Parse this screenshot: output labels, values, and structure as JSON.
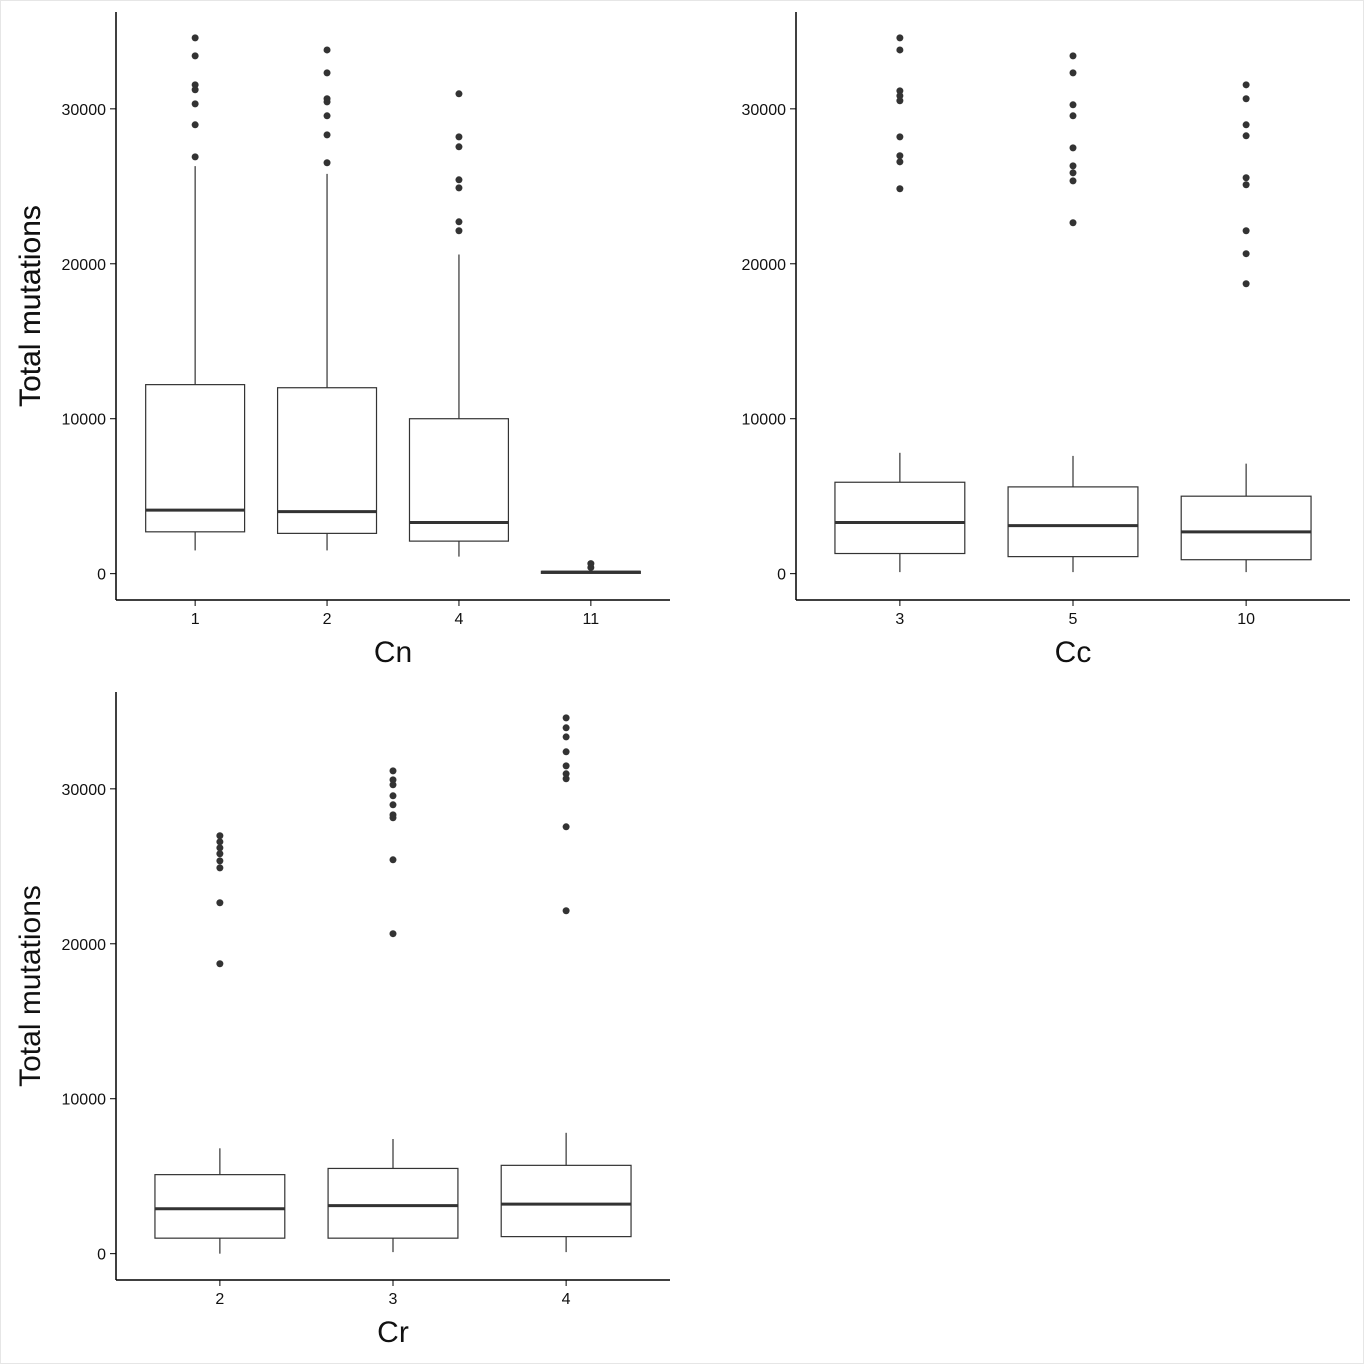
{
  "chart_data": [
    {
      "type": "box",
      "x_label": "Cn",
      "y_label": "Total mutations",
      "categories": [
        "1",
        "2",
        "4",
        "11"
      ],
      "boxes": [
        {
          "whislo": 1500,
          "q1": 2700,
          "med": 4100,
          "q3": 12200,
          "whishi": 26300,
          "outliers": [
            34580,
            33420,
            31550,
            31230,
            30320,
            28970,
            26900
          ]
        },
        {
          "whislo": 1500,
          "q1": 2600,
          "med": 4000,
          "q3": 12000,
          "whishi": 25800,
          "outliers": [
            33800,
            32320,
            30650,
            30450,
            29550,
            28320,
            26520
          ]
        },
        {
          "whislo": 1100,
          "q1": 2100,
          "med": 3300,
          "q3": 10000,
          "whishi": 20600,
          "outliers": [
            30970,
            28190,
            27550,
            25420,
            24900,
            22710,
            22130
          ]
        },
        {
          "whislo": 0,
          "q1": 20,
          "med": 100,
          "q3": 150,
          "whishi": 300,
          "outliers": [
            400,
            650
          ]
        }
      ],
      "ylim": [
        -1700,
        36250
      ],
      "yticks": [
        0,
        10000,
        20000,
        30000
      ]
    },
    {
      "type": "box",
      "x_label": "Cc",
      "y_label": "Total mutations",
      "categories": [
        "3",
        "5",
        "10"
      ],
      "boxes": [
        {
          "whislo": 100,
          "q1": 1300,
          "med": 3300,
          "q3": 5900,
          "whishi": 7800,
          "outliers": [
            34580,
            33800,
            31160,
            30840,
            30520,
            28190,
            26970,
            26580,
            24840
          ]
        },
        {
          "whislo": 100,
          "q1": 1100,
          "med": 3100,
          "q3": 5600,
          "whishi": 7600,
          "outliers": [
            33420,
            32320,
            30260,
            29550,
            27480,
            26320,
            25870,
            25350,
            22650
          ]
        },
        {
          "whislo": 100,
          "q1": 900,
          "med": 2700,
          "q3": 5000,
          "whishi": 7100,
          "outliers": [
            31550,
            30650,
            28970,
            28260,
            25550,
            25100,
            22130,
            20650,
            18710
          ]
        }
      ],
      "ylim": [
        -1700,
        36250
      ],
      "yticks": [
        0,
        10000,
        20000,
        30000
      ]
    },
    {
      "type": "box",
      "x_label": "Cr",
      "y_label": "Total mutations",
      "categories": [
        "2",
        "3",
        "4"
      ],
      "boxes": [
        {
          "whislo": 0,
          "q1": 1000,
          "med": 2900,
          "q3": 5100,
          "whishi": 6800,
          "outliers": [
            26970,
            26580,
            26190,
            25810,
            25350,
            24900,
            22650,
            18710
          ]
        },
        {
          "whislo": 100,
          "q1": 1000,
          "med": 3100,
          "q3": 5500,
          "whishi": 7400,
          "outliers": [
            31160,
            30580,
            30260,
            29550,
            28970,
            28320,
            28130,
            25420,
            20650
          ]
        },
        {
          "whislo": 100,
          "q1": 1100,
          "med": 3200,
          "q3": 5700,
          "whishi": 7800,
          "outliers": [
            34580,
            33940,
            33350,
            32390,
            31480,
            30970,
            30650,
            27550,
            22130
          ]
        }
      ],
      "ylim": [
        -1700,
        36250
      ],
      "yticks": [
        0,
        10000,
        20000,
        30000
      ]
    }
  ]
}
